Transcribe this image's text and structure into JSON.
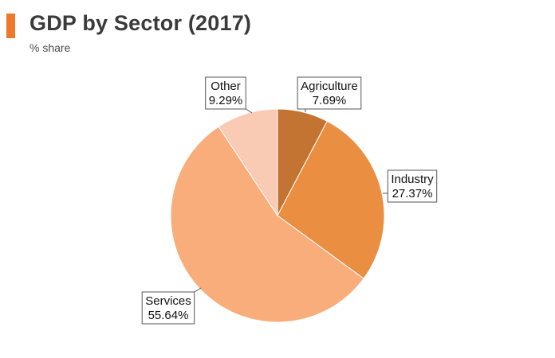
{
  "header": {
    "title": "GDP by Sector (2017)",
    "subtitle": "% share",
    "accent_color": "#ec7a2a"
  },
  "chart_data": {
    "type": "pie",
    "title": "GDP by Sector (2017)",
    "subtitle": "% share",
    "start_angle_deg": 0,
    "direction": "clockwise",
    "slices": [
      {
        "label": "Agriculture",
        "value": 7.69,
        "value_label": "7.69%",
        "color": "#c47432"
      },
      {
        "label": "Industry",
        "value": 27.37,
        "value_label": "27.37%",
        "color": "#ea8f42"
      },
      {
        "label": "Services",
        "value": 55.64,
        "value_label": "55.64%",
        "color": "#f8ad7a"
      },
      {
        "label": "Other",
        "value": 9.29,
        "value_label": "9.29%",
        "color": "#f9cbb4"
      }
    ],
    "legend": "none"
  }
}
